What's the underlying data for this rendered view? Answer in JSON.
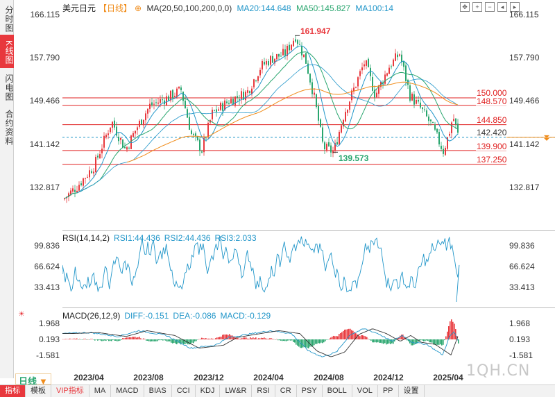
{
  "side_tabs": [
    {
      "label": "分时图",
      "active": false
    },
    {
      "label": "K线图",
      "active": true
    },
    {
      "label": "闪电图",
      "active": false
    },
    {
      "label": "合约资料",
      "active": false
    }
  ],
  "header": {
    "symbol": "美元日元",
    "period": "【日线】",
    "ma_label": "MA(20,50,100,200,0,0)",
    "ma20": "MA20:144.648",
    "ma50": "MA50:145.827",
    "ma100": "MA100:14"
  },
  "tools": [
    "zoom-fit-icon",
    "zoom-in-icon",
    "zoom-out-icon",
    "move-left-icon",
    "move-right-icon"
  ],
  "price_axis": {
    "ticks": [
      "166.115",
      "157.790",
      "149.466",
      "141.142",
      "132.817"
    ]
  },
  "levels": [
    {
      "value": "150.000",
      "last": false
    },
    {
      "value": "148.570",
      "last": false
    },
    {
      "value": "144.850",
      "last": false
    },
    {
      "value": "142.420",
      "last": true
    },
    {
      "value": "139.900",
      "last": false
    },
    {
      "value": "137.250",
      "last": false
    }
  ],
  "annotations": {
    "high": "161.947",
    "low": "139.573"
  },
  "rsi": {
    "title": "RSI(14,14,2)",
    "rsi1": "RSI1:44.436",
    "rsi2": "RSI2:44.436",
    "rsi3": "RSI3:2.033",
    "ticks": [
      "99.836",
      "66.624",
      "33.413"
    ]
  },
  "macd": {
    "title": "MACD(26,12,9)",
    "diff": "DIFF:-0.151",
    "dea": "DEA:-0.086",
    "macd": "MACD:-0.129",
    "ticks": [
      "1.968",
      "0.193",
      "-1.581"
    ]
  },
  "x_axis": [
    "2023/04",
    "2023/08",
    "2023/12",
    "2024/04",
    "2024/08",
    "2024/12",
    "2025/04"
  ],
  "period_select": {
    "label": "日线"
  },
  "bottom_tabs": [
    {
      "label": "指标",
      "active": true,
      "vip": false
    },
    {
      "label": "模板",
      "active": false,
      "vip": false
    },
    {
      "label": "VIP指标",
      "active": false,
      "vip": true
    },
    {
      "label": "MA",
      "active": false,
      "vip": false
    },
    {
      "label": "MACD",
      "active": false,
      "vip": false
    },
    {
      "label": "BIAS",
      "active": false,
      "vip": false
    },
    {
      "label": "CCI",
      "active": false,
      "vip": false
    },
    {
      "label": "KDJ",
      "active": false,
      "vip": false
    },
    {
      "label": "LW&R",
      "active": false,
      "vip": false
    },
    {
      "label": "RSI",
      "active": false,
      "vip": false
    },
    {
      "label": "CR",
      "active": false,
      "vip": false
    },
    {
      "label": "PSY",
      "active": false,
      "vip": false
    },
    {
      "label": "BOLL",
      "active": false,
      "vip": false
    },
    {
      "label": "VOL",
      "active": false,
      "vip": false
    },
    {
      "label": "PP",
      "active": false,
      "vip": false
    },
    {
      "label": "设置",
      "active": false,
      "vip": false
    }
  ],
  "watermark": "1QH.CN",
  "colors": {
    "up": "#e8383d",
    "down": "#2aa66f",
    "level": "#e02020",
    "ma20": "#2196c9",
    "ma50": "#2aa66f",
    "ma200": "#f08c1a",
    "rsi": "#2196c9",
    "last_price": "#2196c9"
  }
}
